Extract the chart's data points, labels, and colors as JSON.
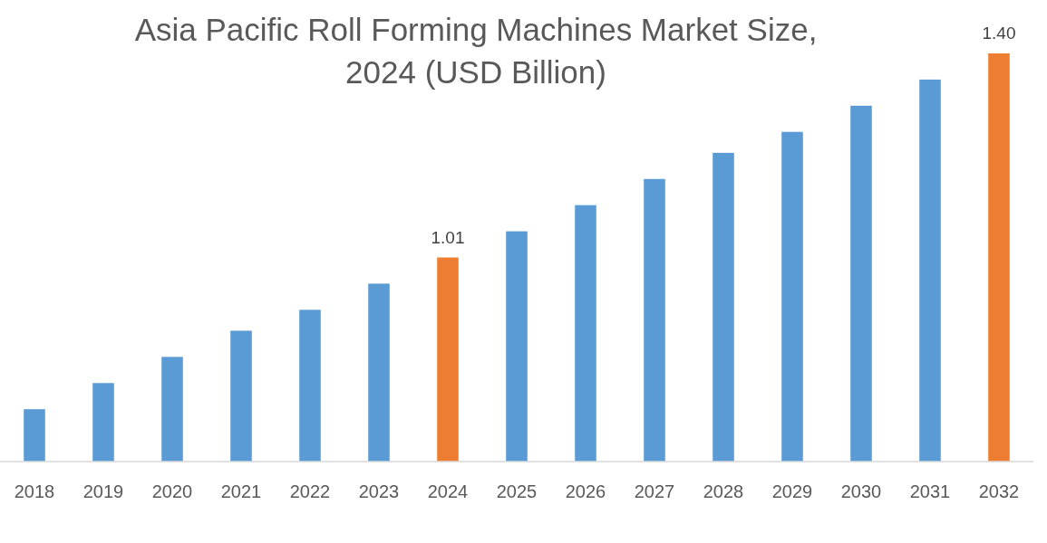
{
  "chart_data": {
    "type": "bar",
    "title": "Asia Pacific Roll Forming Machines Market Size,\n2024 (USD Billion)",
    "categories": [
      "2018",
      "2019",
      "2020",
      "2021",
      "2022",
      "2023",
      "2024",
      "2025",
      "2026",
      "2027",
      "2028",
      "2029",
      "2030",
      "2031",
      "2032"
    ],
    "values": [
      0.72,
      0.77,
      0.82,
      0.87,
      0.91,
      0.96,
      1.01,
      1.06,
      1.11,
      1.16,
      1.21,
      1.25,
      1.3,
      1.35,
      1.4
    ],
    "ylim": [
      0.62,
      1.4
    ],
    "colors": [
      "#5b9bd5",
      "#5b9bd5",
      "#5b9bd5",
      "#5b9bd5",
      "#5b9bd5",
      "#5b9bd5",
      "#ed7d31",
      "#5b9bd5",
      "#5b9bd5",
      "#5b9bd5",
      "#5b9bd5",
      "#5b9bd5",
      "#5b9bd5",
      "#5b9bd5",
      "#ed7d31"
    ],
    "value_labels": [
      null,
      null,
      null,
      null,
      null,
      null,
      "1.01",
      null,
      null,
      null,
      null,
      null,
      null,
      null,
      "1.40"
    ]
  }
}
